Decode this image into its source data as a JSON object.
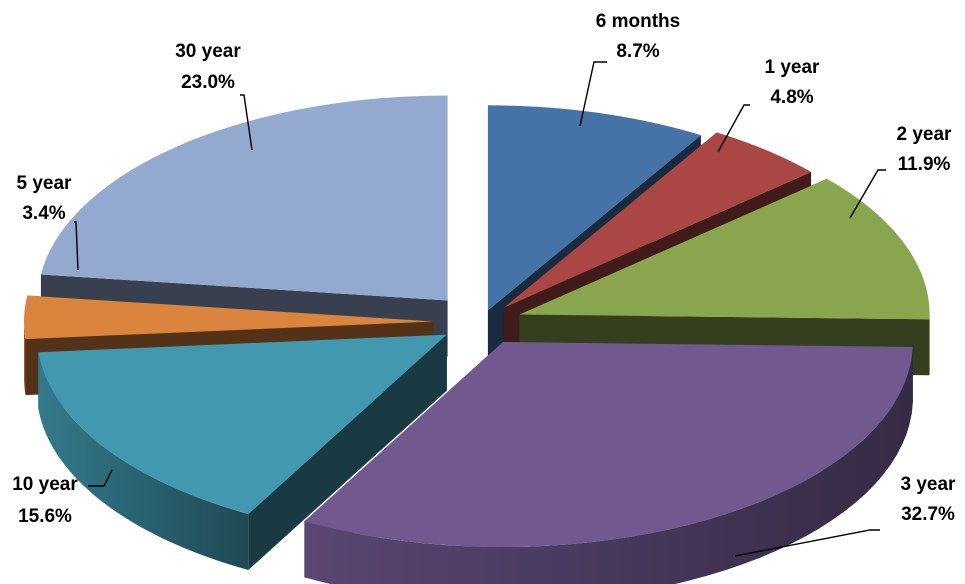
{
  "chart_data": {
    "type": "pie",
    "style": "3d-exploded",
    "slices": [
      {
        "name": "6 months",
        "value": 8.7,
        "label": "8.7%",
        "color": "#4572a7"
      },
      {
        "name": "1 year",
        "value": 4.8,
        "label": "4.8%",
        "color": "#aa4643"
      },
      {
        "name": "2 year",
        "value": 11.9,
        "label": "11.9%",
        "color": "#89a54e"
      },
      {
        "name": "3 year",
        "value": 32.7,
        "label": "32.7%",
        "color": "#71588f"
      },
      {
        "name": "10 year",
        "value": 15.6,
        "label": "15.6%",
        "color": "#4198af"
      },
      {
        "name": "5 year",
        "value": 3.4,
        "label": "3.4%",
        "color": "#db843d"
      },
      {
        "name": "30 year",
        "value": 23.0,
        "label": "23.0%",
        "color": "#93a9cf"
      }
    ]
  }
}
